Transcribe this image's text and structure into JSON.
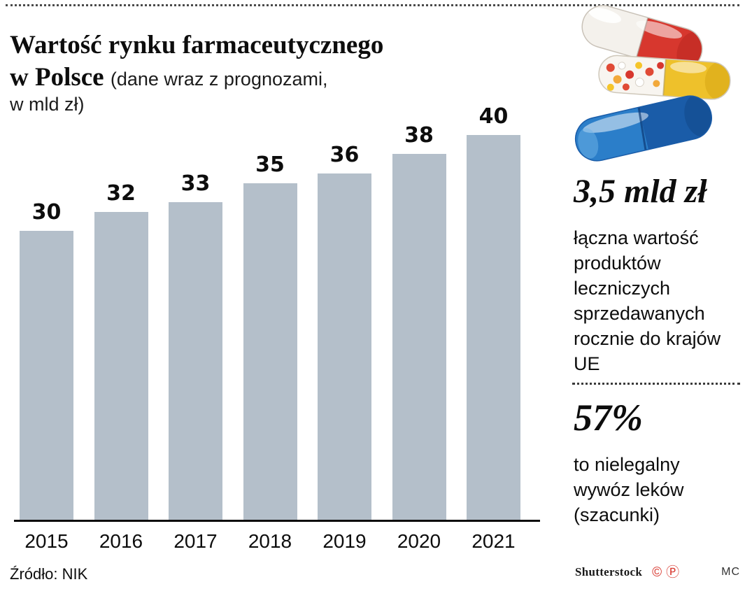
{
  "header": {
    "title_line1": "Wartość rynku farmaceutycznego",
    "title_line2": "w Polsce",
    "subtitle_inline": "(dane wraz z prognozami,",
    "subtitle_line2": "w mld zł)"
  },
  "chart_data": {
    "type": "bar",
    "categories": [
      "2015",
      "2016",
      "2017",
      "2018",
      "2019",
      "2020",
      "2021"
    ],
    "values": [
      30,
      32,
      33,
      35,
      36,
      38,
      40
    ],
    "title": "Wartość rynku farmaceutycznego w Polsce (dane wraz z prognozami, w mld zł)",
    "xlabel": "",
    "ylabel": "",
    "ylim": [
      0,
      40
    ],
    "grid": false,
    "legend": "none",
    "bar_color": "#b4bfca",
    "value_labels": true
  },
  "source": "Źródło: NIK",
  "sidebar": {
    "stat1": {
      "value": "3,5 mld zł",
      "desc": "łączna wartość produktów leczniczych sprzedawanych rocznie do krajów UE"
    },
    "stat2": {
      "value": "57%",
      "desc": "to nielegalny wywóz leków (szacunki)"
    }
  },
  "footer": {
    "credit": "Shutterstock",
    "copyright_symbol": "©",
    "phonogram_symbol": "Ⓟ",
    "initials": "MC"
  },
  "colors": {
    "bar": "#b4bfca",
    "capsule_red": "#d7372e",
    "capsule_yellow": "#eec12b",
    "capsule_blue": "#2b7ec9",
    "symbol_red": "#d8372e"
  }
}
